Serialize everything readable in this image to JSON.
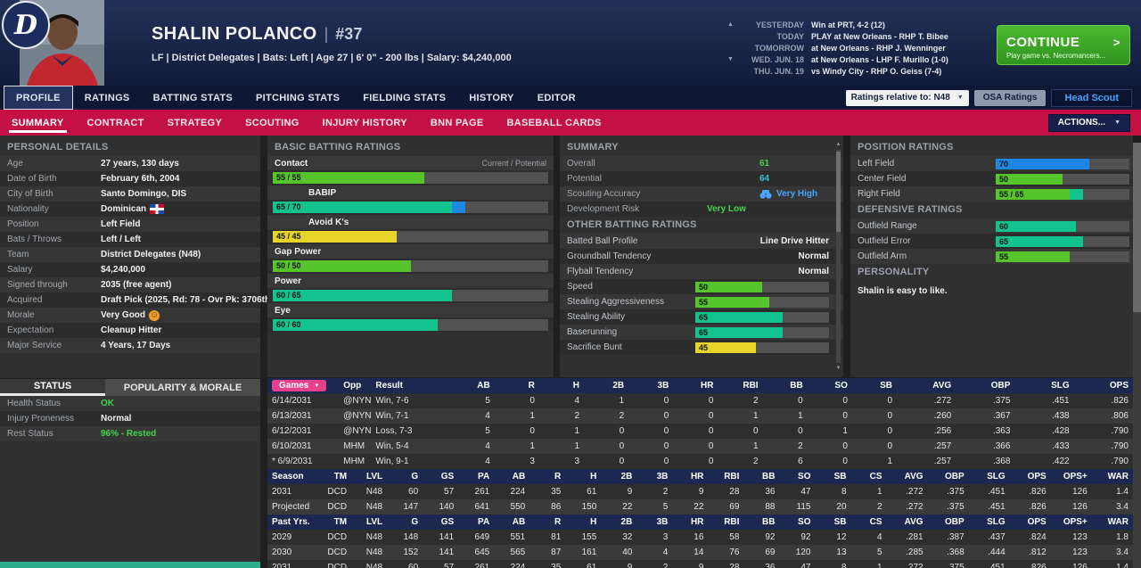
{
  "icons": {
    "caret_down": "▼",
    "scroll_up": "▲",
    "scroll_down": "▼",
    "continue_arrow": ">",
    "morale_smiley": "☺",
    "team_logo_letter": "D"
  },
  "colors": {
    "rating": {
      "yellow": "#e9d429",
      "green": "#56c52c",
      "teal": "#13c38d",
      "blue": "#1d87e6"
    },
    "accent_red": "#c41144",
    "header_navy": "#1a2547",
    "continue_green": "#3aa524",
    "games_pill_pink": "#e8408c",
    "positive_green": "#42d54a",
    "potential_cyan": "#35c0cf",
    "link_blue": "#4aa3ff"
  },
  "header": {
    "player_name": "SHALIN POLANCO",
    "player_number": "#37",
    "player_info": "LF | District Delegates  |  Bats: Left  |  Age 27  |  6' 0\" - 200 lbs  |  Salary: $4,240,000",
    "schedule": [
      {
        "label": "YESTERDAY",
        "text": "Win at PRT, 4-2 (12)"
      },
      {
        "label": "TODAY",
        "text": "PLAY at New Orleans - RHP T. Bibee"
      },
      {
        "label": "TOMORROW",
        "text": "at New Orleans - RHP J. Wenninger"
      },
      {
        "label": "WED. JUN. 18",
        "text": "at New Orleans - LHP F. Murillo (1-0)"
      },
      {
        "label": "THU. JUN. 19",
        "text": "vs Windy City - RHP O. Geiss (7-4)"
      }
    ],
    "continue_button": {
      "label": "CONTINUE",
      "sublabel": "Play game vs. Necromancers..."
    }
  },
  "nav": {
    "tabs": [
      "PROFILE",
      "RATINGS",
      "BATTING STATS",
      "PITCHING STATS",
      "FIELDING STATS",
      "HISTORY",
      "EDITOR"
    ],
    "active_tab": "PROFILE",
    "ratings_relative": "Ratings relative to: N48",
    "osa_button": "OSA Ratings",
    "head_scout_button": "Head Scout"
  },
  "subnav": {
    "tabs": [
      "SUMMARY",
      "CONTRACT",
      "STRATEGY",
      "SCOUTING",
      "INJURY HISTORY",
      "BNN PAGE",
      "BASEBALL CARDS"
    ],
    "active_tab": "SUMMARY",
    "actions_button": "ACTIONS..."
  },
  "personal": {
    "title": "PERSONAL DETAILS",
    "rows": [
      {
        "label": "Age",
        "value": "27 years, 130 days"
      },
      {
        "label": "Date of Birth",
        "value": "February 6th, 2004"
      },
      {
        "label": "City of Birth",
        "value": "Santo Domingo, DIS"
      },
      {
        "label": "Nationality",
        "value": "Dominican"
      },
      {
        "label": "Position",
        "value": "Left Field"
      },
      {
        "label": "Bats / Throws",
        "value": "Left / Left"
      },
      {
        "label": "Team",
        "value": "District Delegates (N48)"
      },
      {
        "label": "Salary",
        "value": "$4,240,000"
      },
      {
        "label": "Signed through",
        "value": "2035 (free agent)"
      },
      {
        "label": "Acquired",
        "value": "Draft Pick (2025, Rd: 78 - Ovr Pk: 3706th)"
      },
      {
        "label": "Morale",
        "value": "Very Good"
      },
      {
        "label": "Expectation",
        "value": "Cleanup Hitter"
      },
      {
        "label": "Major Service",
        "value": "4 Years, 17 Days"
      }
    ]
  },
  "status": {
    "tabs": [
      "STATUS",
      "POPULARITY & MORALE"
    ],
    "rows": [
      {
        "label": "Health Status",
        "value": "OK"
      },
      {
        "label": "Injury Proneness",
        "value": "Normal"
      },
      {
        "label": "Rest Status",
        "value": "96% - Rested"
      }
    ]
  },
  "basic_batting": {
    "title": "BASIC BATTING RATINGS",
    "scale_label": "Current / Potential",
    "ratings": [
      {
        "label": "Contact",
        "chip": "55 / 55",
        "cur": 55,
        "pot": 55
      },
      {
        "label": "BABIP",
        "chip": "65 / 70",
        "cur": 65,
        "pot": 70
      },
      {
        "label": "Avoid K's",
        "chip": "45 / 45",
        "cur": 45,
        "pot": 45
      },
      {
        "label": "Gap Power",
        "chip": "50 / 50",
        "cur": 50,
        "pot": 50
      },
      {
        "label": "Power",
        "chip": "60 / 65",
        "cur": 60,
        "pot": 65
      },
      {
        "label": "Eye",
        "chip": "60 / 60",
        "cur": 60,
        "pot": 60
      }
    ]
  },
  "summary": {
    "title": "SUMMARY",
    "overall_label": "Overall",
    "overall_value": "61",
    "potential_label": "Potential",
    "potential_value": "64",
    "scouting_label": "Scouting Accuracy",
    "scouting_value": "Very High",
    "risk_label": "Development Risk",
    "risk_value": "Very Low"
  },
  "other_batting": {
    "title": "OTHER BATTING RATINGS",
    "text_rows": [
      {
        "label": "Batted Ball Profile",
        "value": "Line Drive Hitter"
      },
      {
        "label": "Groundball Tendency",
        "value": "Normal"
      },
      {
        "label": "Flyball Tendency",
        "value": "Normal"
      }
    ],
    "bars": [
      {
        "label": "Speed",
        "chip": "50",
        "cur": 50,
        "pot": 50
      },
      {
        "label": "Stealing Aggressiveness",
        "chip": "55",
        "cur": 55,
        "pot": 55
      },
      {
        "label": "Stealing Ability",
        "chip": "65",
        "cur": 65,
        "pot": 65
      },
      {
        "label": "Baserunning",
        "chip": "65",
        "cur": 65,
        "pot": 65
      },
      {
        "label": "Sacrifice Bunt",
        "chip": "45",
        "cur": 45,
        "pot": 45
      }
    ]
  },
  "position_ratings": {
    "title": "POSITION RATINGS",
    "rows": [
      {
        "label": "Left Field",
        "chip": "70",
        "cur": 70,
        "pot": 70
      },
      {
        "label": "Center Field",
        "chip": "50",
        "cur": 50,
        "pot": 50
      },
      {
        "label": "Right Field",
        "chip": "55 / 65",
        "cur": 55,
        "pot": 65
      }
    ]
  },
  "defensive_ratings": {
    "title": "DEFENSIVE RATINGS",
    "rows": [
      {
        "label": "Outfield Range",
        "chip": "60",
        "cur": 60,
        "pot": 60
      },
      {
        "label": "Outfield Error",
        "chip": "65",
        "cur": 65,
        "pot": 65
      },
      {
        "label": "Outfield Arm",
        "chip": "55",
        "cur": 55,
        "pot": 55
      }
    ]
  },
  "personality": {
    "title": "PERSONALITY",
    "text": "Shalin is easy to like."
  },
  "games_table": {
    "header": [
      "Games",
      "Opp",
      "Result",
      "AB",
      "R",
      "H",
      "2B",
      "3B",
      "HR",
      "RBI",
      "BB",
      "SO",
      "SB",
      "AVG",
      "OBP",
      "SLG",
      "OPS"
    ],
    "rows": [
      [
        "6/14/2031",
        "@NYN",
        "Win, 7-6",
        "5",
        "0",
        "4",
        "1",
        "0",
        "0",
        "2",
        "0",
        "0",
        "0",
        ".272",
        ".375",
        ".451",
        ".826"
      ],
      [
        "6/13/2031",
        "@NYN",
        "Win, 7-1",
        "4",
        "1",
        "2",
        "2",
        "0",
        "0",
        "1",
        "1",
        "0",
        "0",
        ".260",
        ".367",
        ".438",
        ".806"
      ],
      [
        "6/12/2031",
        "@NYN",
        "Loss, 7-3",
        "5",
        "0",
        "1",
        "0",
        "0",
        "0",
        "0",
        "0",
        "1",
        "0",
        ".256",
        ".363",
        ".428",
        ".790"
      ],
      [
        "6/10/2031",
        "MHM",
        "Win, 5-4",
        "4",
        "1",
        "1",
        "0",
        "0",
        "0",
        "1",
        "2",
        "0",
        "0",
        ".257",
        ".366",
        ".433",
        ".790"
      ],
      [
        "* 6/9/2031",
        "MHM",
        "Win, 9-1",
        "4",
        "3",
        "3",
        "0",
        "0",
        "0",
        "2",
        "6",
        "0",
        "1",
        ".257",
        ".368",
        ".422",
        ".790"
      ]
    ]
  },
  "season_table": {
    "header": [
      "Season",
      "TM",
      "LVL",
      "G",
      "GS",
      "PA",
      "AB",
      "R",
      "H",
      "2B",
      "3B",
      "HR",
      "RBI",
      "BB",
      "SO",
      "SB",
      "CS",
      "AVG",
      "OBP",
      "SLG",
      "OPS",
      "OPS+",
      "WAR"
    ],
    "rows": [
      [
        "2031",
        "DCD",
        "N48",
        "60",
        "57",
        "261",
        "224",
        "35",
        "61",
        "9",
        "2",
        "9",
        "28",
        "36",
        "47",
        "8",
        "1",
        ".272",
        ".375",
        ".451",
        ".826",
        "126",
        "1.4"
      ],
      [
        "Projected",
        "DCD",
        "N48",
        "147",
        "140",
        "641",
        "550",
        "86",
        "150",
        "22",
        "5",
        "22",
        "69",
        "88",
        "115",
        "20",
        "2",
        ".272",
        ".375",
        ".451",
        ".826",
        "126",
        "3.4"
      ]
    ],
    "past_header": [
      "Past Yrs.",
      "TM",
      "LVL",
      "G",
      "GS",
      "PA",
      "AB",
      "R",
      "H",
      "2B",
      "3B",
      "HR",
      "RBI",
      "BB",
      "SO",
      "SB",
      "CS",
      "AVG",
      "OBP",
      "SLG",
      "OPS",
      "OPS+",
      "WAR"
    ],
    "past_rows": [
      [
        "2029",
        "DCD",
        "N48",
        "148",
        "141",
        "649",
        "551",
        "81",
        "155",
        "32",
        "3",
        "16",
        "58",
        "92",
        "92",
        "12",
        "4",
        ".281",
        ".387",
        ".437",
        ".824",
        "123",
        "1.8"
      ],
      [
        "2030",
        "DCD",
        "N48",
        "152",
        "141",
        "645",
        "565",
        "87",
        "161",
        "40",
        "4",
        "14",
        "76",
        "69",
        "120",
        "13",
        "5",
        ".285",
        ".368",
        ".444",
        ".812",
        "123",
        "3.4"
      ],
      [
        "2031",
        "DCD",
        "N48",
        "60",
        "57",
        "261",
        "224",
        "35",
        "61",
        "9",
        "2",
        "9",
        "28",
        "36",
        "47",
        "8",
        "1",
        ".272",
        ".375",
        ".451",
        ".826",
        "126",
        "1.4"
      ]
    ]
  }
}
